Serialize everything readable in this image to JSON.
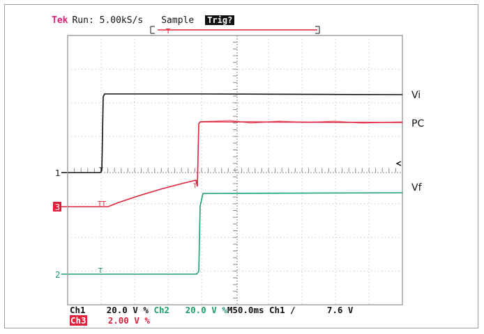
{
  "header": {
    "brand": "Tek",
    "run_text": "Run: 5.00kS/s",
    "mode": "Sample",
    "trig_label": "Trig?"
  },
  "traces": {
    "vi_label": "Vi",
    "pc_label": "PC",
    "vf_label": "Vf",
    "marker_1": "1",
    "marker_2": "2",
    "marker_3": "3"
  },
  "footer": {
    "ch1_label": "Ch1",
    "ch1_scale": "20.0 V",
    "ch1_coupling": "%",
    "ch2_label": "Ch2",
    "ch2_scale": "20.0 V",
    "ch2_coupling": "%",
    "timebase": "M50.0ms",
    "trigger_source": "Ch1",
    "trigger_slope": "∕",
    "trigger_level": "7.6 V",
    "ch3_label": "Ch3",
    "ch3_scale": "2.00 V",
    "ch3_coupling": "%"
  },
  "colors": {
    "ch1": "#111111",
    "ch2": "#1aa06a",
    "ch3": "#e0203a",
    "brand": "#e0207a",
    "grid": "#8a8a8a"
  }
}
